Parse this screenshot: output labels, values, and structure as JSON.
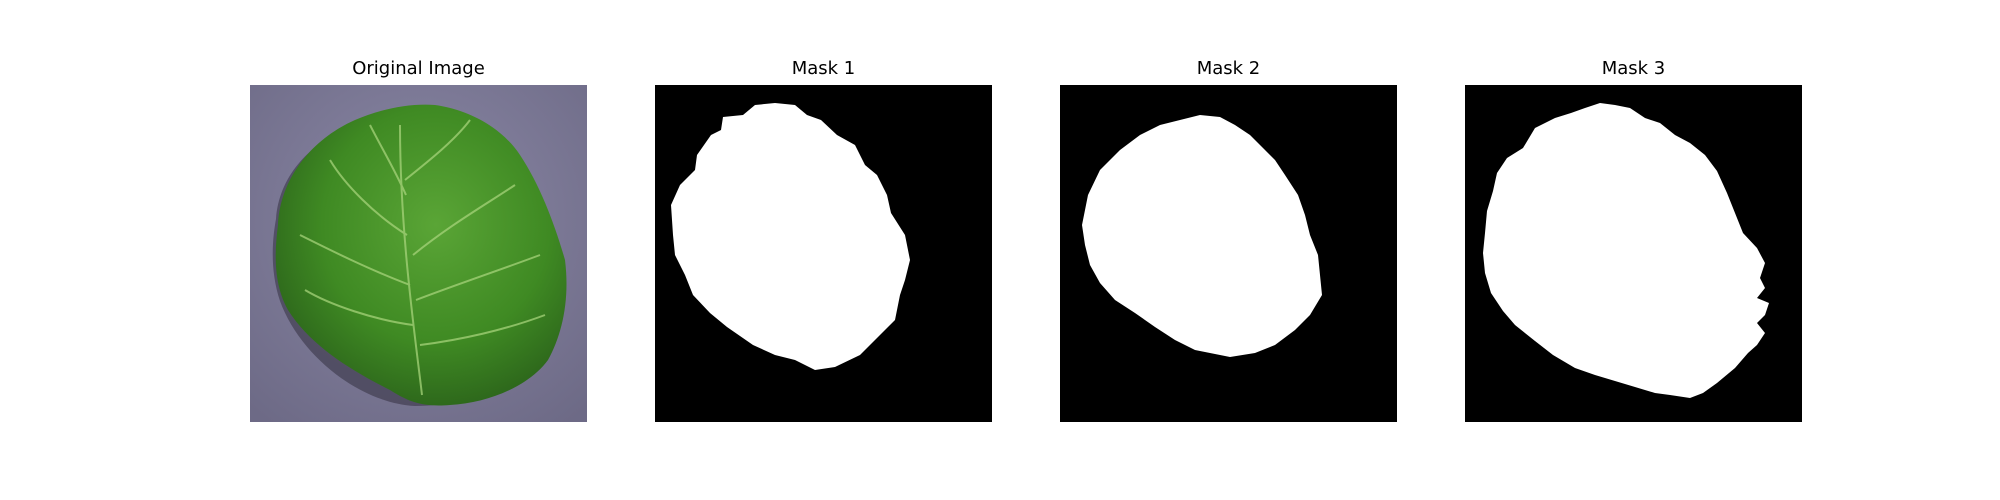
{
  "figure": {
    "panels": [
      {
        "title": "Original Image"
      },
      {
        "title": "Mask 1"
      },
      {
        "title": "Mask 2"
      },
      {
        "title": "Mask 3"
      }
    ]
  },
  "colors": {
    "background": "#7d7a95",
    "leaf": "#3f8a23",
    "leaf_dark": "#24551a",
    "mask_fg": "#ffffff",
    "mask_bg": "#000000"
  }
}
